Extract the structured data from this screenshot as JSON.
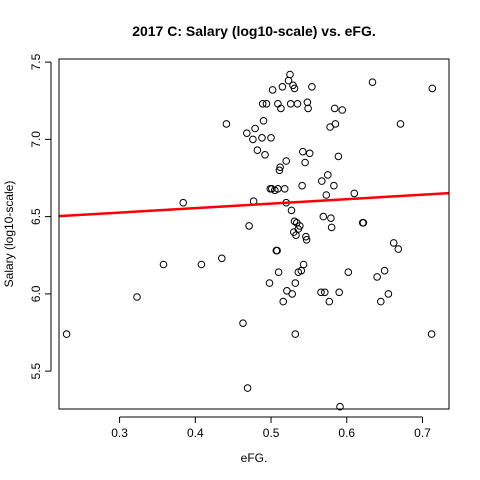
{
  "chart_data": {
    "type": "scatter",
    "title": "2017 C: Salary (log10-scale) vs. eFG.",
    "xlabel": "eFG.",
    "ylabel": "Salary (log10-scale)",
    "xlim": [
      0.22,
      0.735
    ],
    "ylim": [
      5.255,
      7.52
    ],
    "xticks": [
      0.3,
      0.4,
      0.5,
      0.6,
      0.7
    ],
    "xtick_labels": [
      "0.3",
      "0.4",
      "0.5",
      "0.6",
      "0.7"
    ],
    "yticks": [
      5.5,
      6.0,
      6.5,
      7.0,
      7.5
    ],
    "ytick_labels": [
      "5.5",
      "6.0",
      "6.5",
      "7.0",
      "7.5"
    ],
    "fit_line": {
      "color": "#ff0000",
      "x": [
        0.22,
        0.735
      ],
      "y": [
        6.503,
        6.652
      ]
    },
    "points": [
      [
        0.23,
        5.74
      ],
      [
        0.323,
        5.98
      ],
      [
        0.358,
        6.19
      ],
      [
        0.384,
        6.59
      ],
      [
        0.408,
        6.19
      ],
      [
        0.435,
        6.23
      ],
      [
        0.441,
        7.1
      ],
      [
        0.463,
        5.81
      ],
      [
        0.468,
        7.04
      ],
      [
        0.469,
        5.39
      ],
      [
        0.471,
        6.44
      ],
      [
        0.476,
        7.0
      ],
      [
        0.477,
        6.6
      ],
      [
        0.479,
        7.07
      ],
      [
        0.482,
        6.93
      ],
      [
        0.488,
        7.01
      ],
      [
        0.489,
        7.23
      ],
      [
        0.49,
        7.12
      ],
      [
        0.492,
        6.9
      ],
      [
        0.494,
        7.23
      ],
      [
        0.498,
        6.07
      ],
      [
        0.499,
        6.68
      ],
      [
        0.5,
        7.01
      ],
      [
        0.501,
        6.68
      ],
      [
        0.502,
        7.32
      ],
      [
        0.505,
        6.67
      ],
      [
        0.507,
        6.28
      ],
      [
        0.508,
        6.28
      ],
      [
        0.509,
        6.68
      ],
      [
        0.509,
        7.23
      ],
      [
        0.51,
        6.14
      ],
      [
        0.511,
        6.8
      ],
      [
        0.512,
        6.82
      ],
      [
        0.513,
        7.2
      ],
      [
        0.515,
        7.34
      ],
      [
        0.516,
        5.95
      ],
      [
        0.518,
        6.68
      ],
      [
        0.52,
        6.86
      ],
      [
        0.52,
        6.59
      ],
      [
        0.521,
        6.02
      ],
      [
        0.523,
        7.38
      ],
      [
        0.525,
        7.42
      ],
      [
        0.526,
        7.23
      ],
      [
        0.527,
        6.54
      ],
      [
        0.528,
        6.0
      ],
      [
        0.529,
        7.35
      ],
      [
        0.53,
        6.4
      ],
      [
        0.531,
        6.47
      ],
      [
        0.531,
        7.33
      ],
      [
        0.532,
        6.07
      ],
      [
        0.532,
        5.74
      ],
      [
        0.533,
        6.38
      ],
      [
        0.534,
        6.46
      ],
      [
        0.535,
        7.23
      ],
      [
        0.536,
        6.42
      ],
      [
        0.536,
        6.14
      ],
      [
        0.538,
        6.44
      ],
      [
        0.54,
        6.15
      ],
      [
        0.541,
        6.7
      ],
      [
        0.542,
        6.92
      ],
      [
        0.543,
        6.19
      ],
      [
        0.545,
        6.85
      ],
      [
        0.546,
        6.37
      ],
      [
        0.547,
        6.35
      ],
      [
        0.548,
        7.24
      ],
      [
        0.549,
        7.2
      ],
      [
        0.551,
        6.91
      ],
      [
        0.554,
        7.34
      ],
      [
        0.566,
        6.01
      ],
      [
        0.567,
        6.73
      ],
      [
        0.569,
        6.5
      ],
      [
        0.571,
        6.01
      ],
      [
        0.573,
        6.64
      ],
      [
        0.575,
        6.77
      ],
      [
        0.577,
        5.95
      ],
      [
        0.578,
        7.08
      ],
      [
        0.579,
        6.49
      ],
      [
        0.58,
        6.43
      ],
      [
        0.583,
        6.7
      ],
      [
        0.584,
        7.2
      ],
      [
        0.585,
        7.1
      ],
      [
        0.589,
        6.89
      ],
      [
        0.59,
        6.01
      ],
      [
        0.591,
        5.27
      ],
      [
        0.594,
        7.19
      ],
      [
        0.602,
        6.14
      ],
      [
        0.61,
        6.65
      ],
      [
        0.621,
        6.46
      ],
      [
        0.622,
        6.46
      ],
      [
        0.634,
        7.37
      ],
      [
        0.64,
        6.11
      ],
      [
        0.645,
        5.95
      ],
      [
        0.65,
        6.15
      ],
      [
        0.655,
        6.0
      ],
      [
        0.662,
        6.33
      ],
      [
        0.668,
        6.29
      ],
      [
        0.671,
        7.1
      ],
      [
        0.712,
        5.74
      ],
      [
        0.713,
        7.33
      ]
    ]
  }
}
